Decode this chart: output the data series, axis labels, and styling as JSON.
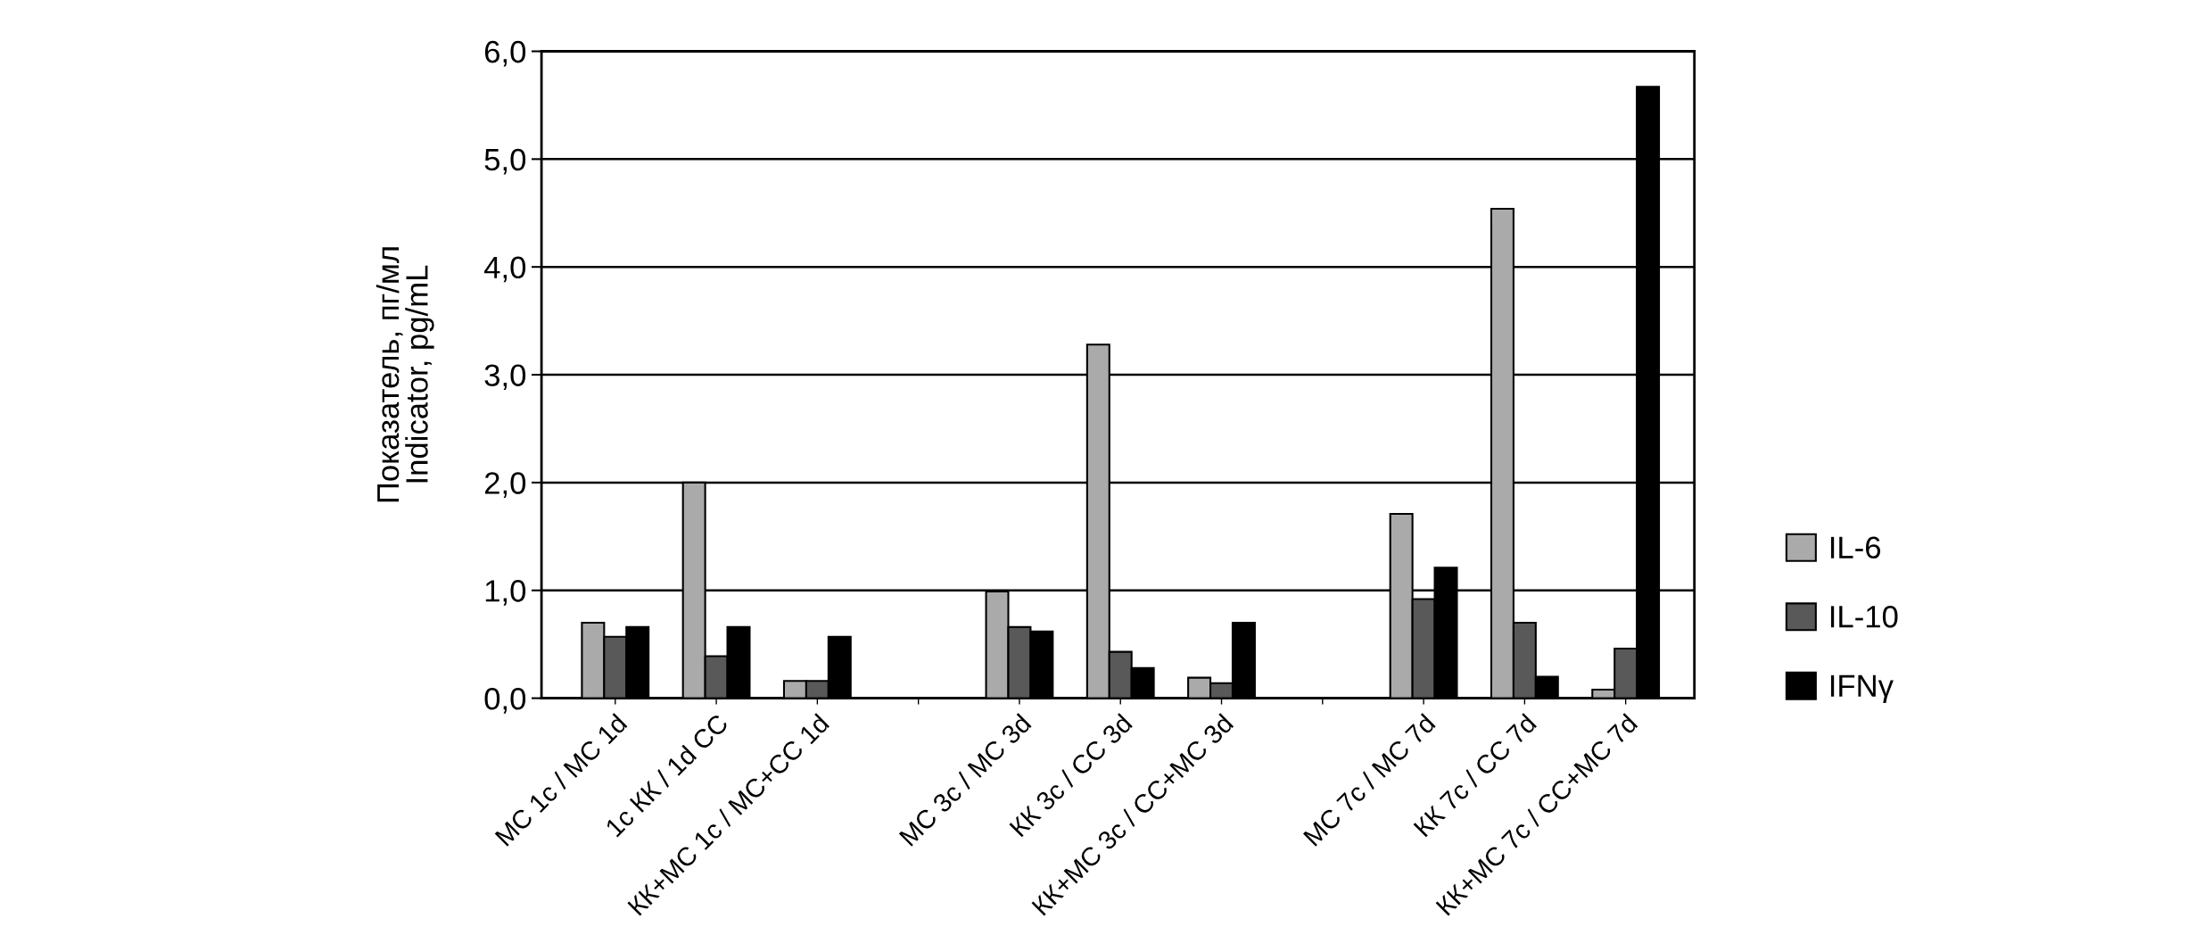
{
  "chart_data": {
    "type": "bar",
    "ylabel": "Показатель, пг/мл\nIndicator, pg/mL",
    "categories": [
      "МС 1с / MC 1d",
      "1с КК / 1d CC",
      "КК+МС 1с / MC+CC 1d",
      null,
      "МС 3с / MC 3d",
      "КК 3с / CC 3d",
      "КК+МС 3с / CC+MC 3d",
      null,
      "МС 7с / MC 7d",
      "КК 7с / CC 7d",
      "КК+МС 7с / CC+MC 7d"
    ],
    "series": [
      {
        "name": "IL-6",
        "color": "#aaaaaa",
        "values": [
          0.7,
          2.0,
          0.16,
          null,
          0.99,
          3.28,
          0.19,
          null,
          1.71,
          4.54,
          0.08
        ]
      },
      {
        "name": "IL-10",
        "color": "#595959",
        "values": [
          0.57,
          0.39,
          0.16,
          null,
          0.66,
          0.43,
          0.14,
          null,
          0.92,
          0.7,
          0.46
        ]
      },
      {
        "name": "IFNγ",
        "color": "#000000",
        "values": [
          0.66,
          0.66,
          0.57,
          null,
          0.62,
          0.28,
          0.7,
          null,
          1.21,
          0.2,
          5.67
        ]
      }
    ],
    "ylim": [
      0,
      6
    ],
    "yticks": [
      {
        "value": 0,
        "label": "0,0"
      },
      {
        "value": 1,
        "label": "1,0"
      },
      {
        "value": 2,
        "label": "2,0"
      },
      {
        "value": 3,
        "label": "3,0"
      },
      {
        "value": 4,
        "label": "4,0"
      },
      {
        "value": 5,
        "label": "5,0"
      },
      {
        "value": 6,
        "label": "6,0"
      }
    ],
    "grid": "y",
    "legend": "right"
  }
}
